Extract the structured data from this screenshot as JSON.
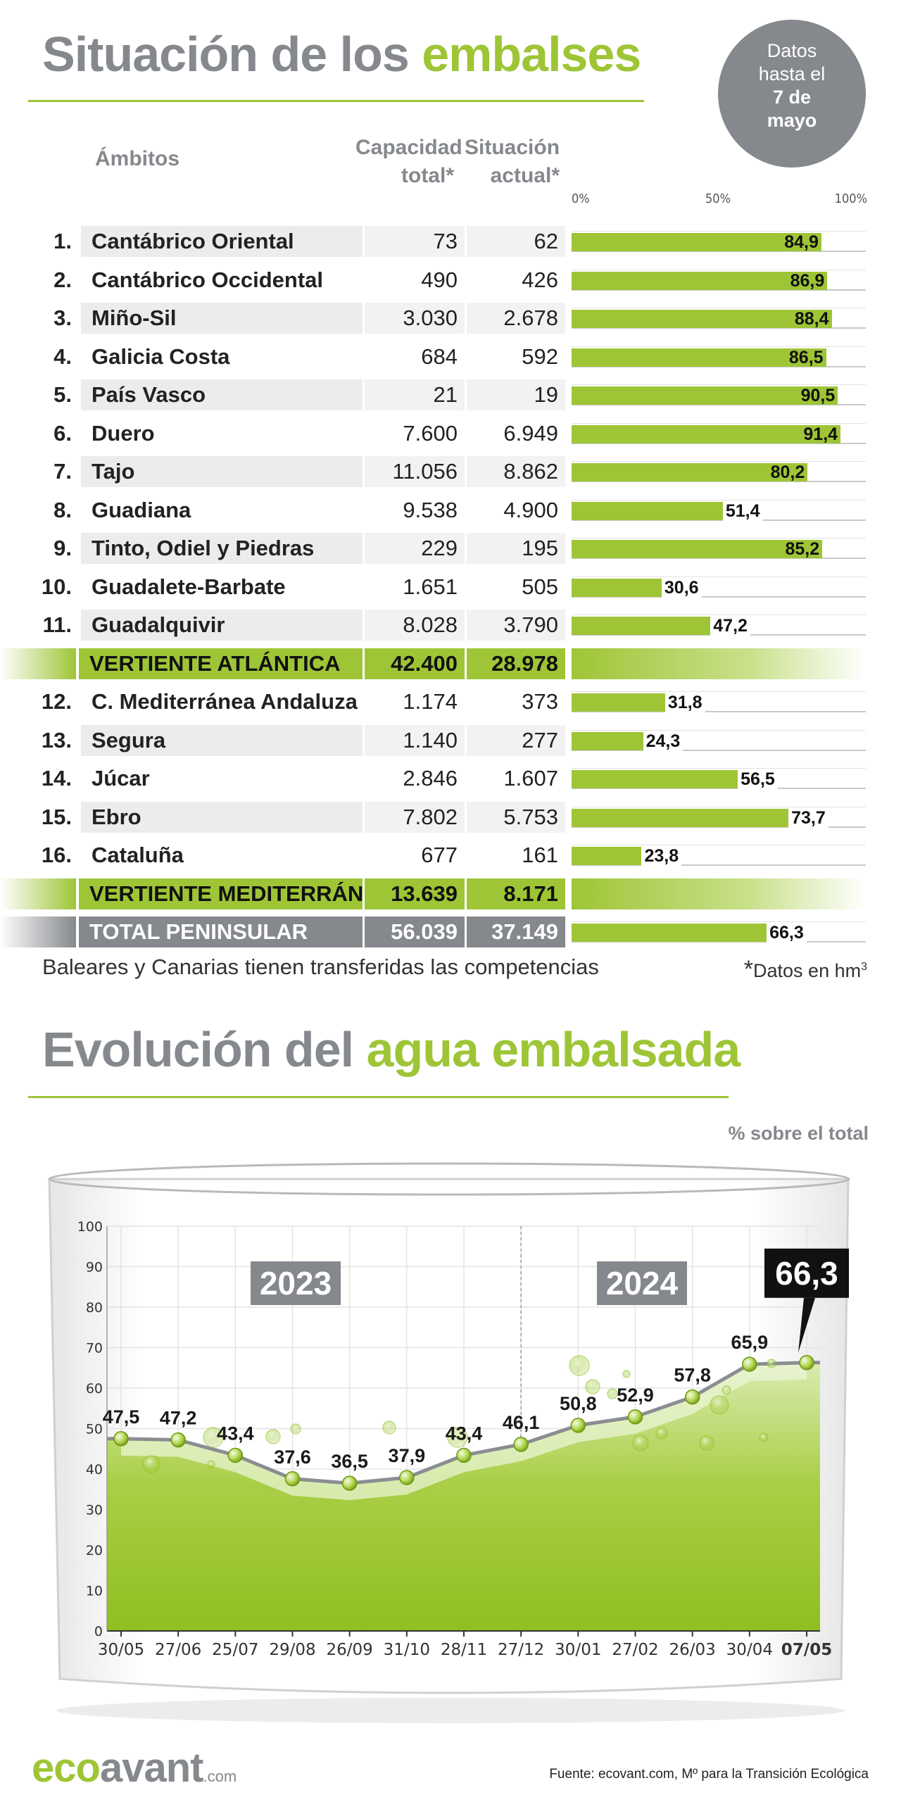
{
  "header": {
    "title_part1": "Situación de los",
    "title_part2": "embalses",
    "badge_line1": "Datos",
    "badge_line2": "hasta el",
    "badge_line3": "7 de",
    "badge_line4": "mayo"
  },
  "table": {
    "col_ambitos": "Ámbitos",
    "col_capacidad_1": "Capacidad",
    "col_capacidad_2": "total*",
    "col_situacion_1": "Situación",
    "col_situacion_2": "actual*",
    "scale": [
      "0%",
      "50%",
      "100%"
    ],
    "rows": [
      {
        "num": "1.",
        "name": "Cantábrico Oriental",
        "cap": "73",
        "act": "62",
        "pct": 84.9,
        "pct_label": "84,9",
        "kind": "normal"
      },
      {
        "num": "2.",
        "name": "Cantábrico Occidental",
        "cap": "490",
        "act": "426",
        "pct": 86.9,
        "pct_label": "86,9",
        "kind": "normal"
      },
      {
        "num": "3.",
        "name": "Miño-Sil",
        "cap": "3.030",
        "act": "2.678",
        "pct": 88.4,
        "pct_label": "88,4",
        "kind": "normal"
      },
      {
        "num": "4.",
        "name": "Galicia Costa",
        "cap": "684",
        "act": "592",
        "pct": 86.5,
        "pct_label": "86,5",
        "kind": "normal"
      },
      {
        "num": "5.",
        "name": "País Vasco",
        "cap": "21",
        "act": "19",
        "pct": 90.5,
        "pct_label": "90,5",
        "kind": "normal"
      },
      {
        "num": "6.",
        "name": "Duero",
        "cap": "7.600",
        "act": "6.949",
        "pct": 91.4,
        "pct_label": "91,4",
        "kind": "normal"
      },
      {
        "num": "7.",
        "name": "Tajo",
        "cap": "11.056",
        "act": "8.862",
        "pct": 80.2,
        "pct_label": "80,2",
        "kind": "normal"
      },
      {
        "num": "8.",
        "name": "Guadiana",
        "cap": "9.538",
        "act": "4.900",
        "pct": 51.4,
        "pct_label": "51,4",
        "kind": "normal"
      },
      {
        "num": "9.",
        "name": "Tinto, Odiel y Piedras",
        "cap": "229",
        "act": "195",
        "pct": 85.2,
        "pct_label": "85,2",
        "kind": "normal"
      },
      {
        "num": "10.",
        "name": "Guadalete-Barbate",
        "cap": "1.651",
        "act": "505",
        "pct": 30.6,
        "pct_label": "30,6",
        "kind": "normal"
      },
      {
        "num": "11.",
        "name": "Guadalquivir",
        "cap": "8.028",
        "act": "3.790",
        "pct": 47.2,
        "pct_label": "47,2",
        "kind": "normal"
      },
      {
        "num": "",
        "name": "VERTIENTE ATLÁNTICA",
        "cap": "42.400",
        "act": "28.978",
        "pct": null,
        "pct_label": "",
        "kind": "subtotal"
      },
      {
        "num": "12.",
        "name": "C. Mediterránea Andaluza",
        "cap": "1.174",
        "act": "373",
        "pct": 31.8,
        "pct_label": "31,8",
        "kind": "normal"
      },
      {
        "num": "13.",
        "name": "Segura",
        "cap": "1.140",
        "act": "277",
        "pct": 24.3,
        "pct_label": "24,3",
        "kind": "normal"
      },
      {
        "num": "14.",
        "name": "Júcar",
        "cap": "2.846",
        "act": "1.607",
        "pct": 56.5,
        "pct_label": "56,5",
        "kind": "normal"
      },
      {
        "num": "15.",
        "name": "Ebro",
        "cap": "7.802",
        "act": "5.753",
        "pct": 73.7,
        "pct_label": "73,7",
        "kind": "normal"
      },
      {
        "num": "16.",
        "name": "Cataluña",
        "cap": "677",
        "act": "161",
        "pct": 23.8,
        "pct_label": "23,8",
        "kind": "normal"
      },
      {
        "num": "",
        "name": "VERTIENTE MEDITERRÁNEA",
        "cap": "13.639",
        "act": "8.171",
        "pct": null,
        "pct_label": "",
        "kind": "subtotal"
      },
      {
        "num": "",
        "name": "TOTAL PENINSULAR",
        "cap": "56.039",
        "act": "37.149",
        "pct": 66.3,
        "pct_label": "66,3",
        "kind": "total"
      }
    ],
    "note_left": "Baleares y Canarias tienen transferidas las competencias",
    "note_right_star": "*",
    "note_right_text": "Datos en hm",
    "note_right_sup": "3"
  },
  "evolution": {
    "title_part1": "Evolución del",
    "title_part2": "agua embalsada",
    "unit_label": "% sobre el total"
  },
  "chart_data": [
    {
      "type": "bar",
      "title": "Situación de los embalses",
      "categories": [
        "Cantábrico Oriental",
        "Cantábrico Occidental",
        "Miño-Sil",
        "Galicia Costa",
        "País Vasco",
        "Duero",
        "Tajo",
        "Guadiana",
        "Tinto, Odiel y Piedras",
        "Guadalete-Barbate",
        "Guadalquivir",
        "C. Mediterránea Andaluza",
        "Segura",
        "Júcar",
        "Ebro",
        "Cataluña",
        "TOTAL PENINSULAR"
      ],
      "values": [
        84.9,
        86.9,
        88.4,
        86.5,
        90.5,
        91.4,
        80.2,
        51.4,
        85.2,
        30.6,
        47.2,
        31.8,
        24.3,
        56.5,
        73.7,
        23.8,
        66.3
      ],
      "xlim": [
        0,
        100
      ],
      "xlabel": "%"
    },
    {
      "type": "area",
      "title": "Evolución del agua embalsada",
      "ylabel": "% sobre el total",
      "ylim": [
        0,
        100
      ],
      "yticks": [
        0,
        10,
        20,
        30,
        40,
        50,
        60,
        70,
        80,
        90,
        100
      ],
      "categories": [
        "30/05",
        "27/06",
        "25/07",
        "29/08",
        "26/09",
        "31/10",
        "28/11",
        "27/12",
        "30/01",
        "27/02",
        "26/03",
        "30/04",
        "07/05"
      ],
      "values": [
        47.5,
        47.2,
        43.4,
        37.6,
        36.5,
        37.9,
        43.4,
        46.1,
        50.8,
        52.9,
        57.8,
        65.9,
        66.3
      ],
      "value_labels": [
        "47,5",
        "47,2",
        "43,4",
        "37,6",
        "36,5",
        "37,9",
        "43,4",
        "46,1",
        "50,8",
        "52,9",
        "57,8",
        "65,9",
        "66,3"
      ],
      "year_labels": [
        "2023",
        "2024"
      ],
      "year_split_after_index": 7,
      "highlight_label": "66,3"
    }
  ],
  "footer": {
    "logo_eco": "eco",
    "logo_avant": "avant",
    "logo_dom": ".com",
    "source": "Fuente: ecovant.com, Mº para la Transición Ecológica"
  }
}
